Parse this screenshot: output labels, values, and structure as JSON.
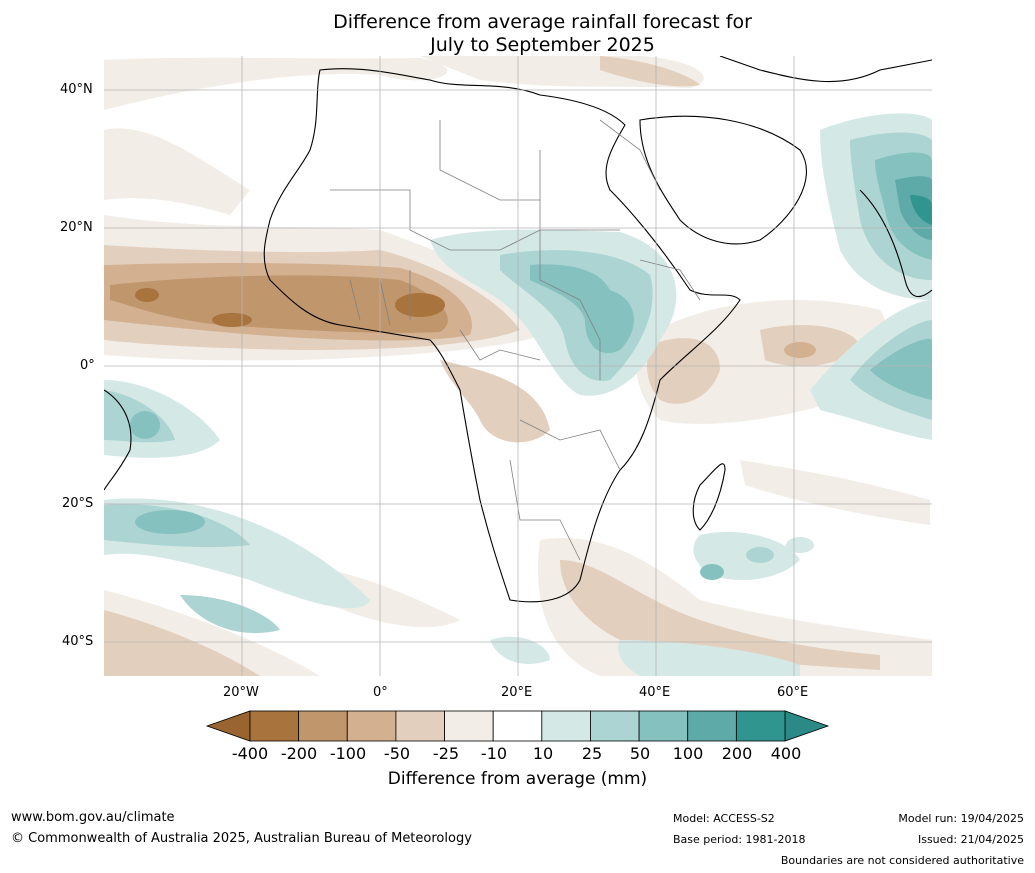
{
  "title_line1": "Difference from average rainfall forecast for",
  "title_line2": "July to September 2025",
  "lat_labels": [
    "40°N",
    "20°N",
    "0°",
    "20°S",
    "40°S"
  ],
  "lon_labels": [
    "20°W",
    "0°",
    "20°E",
    "40°E",
    "60°E"
  ],
  "colorbar": {
    "labels": [
      "-400",
      "-200",
      "-100",
      "-50",
      "-25",
      "-10",
      "10",
      "25",
      "50",
      "100",
      "200",
      "400"
    ],
    "colors": [
      "#a8733c",
      "#c0966c",
      "#d2b090",
      "#e3cfbd",
      "#f2ede6",
      "#ffffff",
      "#d4e8e6",
      "#abd4d2",
      "#85c1bf",
      "#5daaa8",
      "#31958f"
    ],
    "end_low_color": "#9a6430",
    "end_high_color": "#2b8a85",
    "title": "Difference from average (mm)"
  },
  "footer": {
    "url": "www.bom.gov.au/climate",
    "copyright": "© Commonwealth of Australia 2025, Australian Bureau of Meteorology",
    "model": "Model: ACCESS-S2",
    "base_period": "Base period: 1981-2018",
    "model_run": "Model run: 19/04/2025",
    "issued": "Issued: 21/04/2025",
    "disclaimer": "Boundaries are not considered authoritative"
  }
}
